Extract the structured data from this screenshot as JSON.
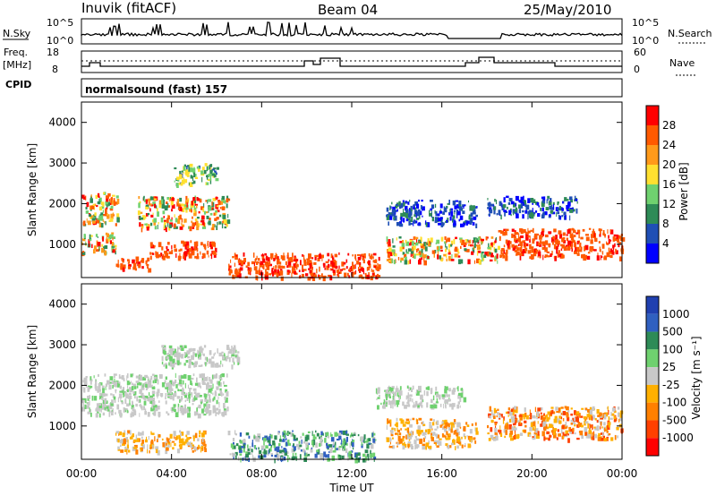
{
  "header": {
    "station": "Inuvik (fitACF)",
    "beam": "Beam 04",
    "date": "25/May/2010"
  },
  "sky_panel": {
    "left_label": "N.Sky",
    "right_label": "N.Search",
    "left_ticks": [
      "10^5",
      "10^0"
    ],
    "right_ticks": [
      "10^5",
      "10^0"
    ]
  },
  "freq_panel": {
    "left_label_1": "Freq.",
    "left_label_2": "[MHz]",
    "right_label": "Nave",
    "left_ticks": [
      "18",
      "8"
    ],
    "right_ticks": [
      "60",
      "0"
    ]
  },
  "cpid_panel": {
    "label": "CPID",
    "text": "normalsound (fast) 157"
  },
  "power_panel": {
    "ylabel": "Slant Range [km]",
    "colorbar_label": "Power [dB]",
    "colorbar_ticks": [
      "28",
      "24",
      "20",
      "16",
      "12",
      "8",
      "4"
    ],
    "colors": [
      "#0000ff",
      "#1f4fb5",
      "#2e8b57",
      "#6fd16f",
      "#ffe030",
      "#ff9a1a",
      "#ff5a00",
      "#ff0000"
    ]
  },
  "velocity_panel": {
    "ylabel": "Slant Range [km]",
    "colorbar_label": "Velocity [m s⁻¹]",
    "colorbar_ticks": [
      "1000",
      "500",
      "100",
      "25",
      "-25",
      "-100",
      "-500",
      "-1000"
    ],
    "colors": [
      "#2040b0",
      "#3060c0",
      "#2e8b57",
      "#6fd16f",
      "#c8c8c8",
      "#ffb000",
      "#ff8000",
      "#ff4000",
      "#ff0000"
    ]
  },
  "xaxis": {
    "label": "Time UT",
    "ticks": [
      "00:00",
      "04:00",
      "08:00",
      "12:00",
      "16:00",
      "20:00",
      "00:00"
    ]
  },
  "chart_data": {
    "type": "heatmap",
    "x_range_hours": [
      0,
      24
    ],
    "y_range_km": [
      180,
      4500
    ],
    "y_ticks_km": [
      1000,
      2000,
      3000,
      4000
    ],
    "power_regions": [
      {
        "t0": 0.0,
        "t1": 1.6,
        "r0": 1500,
        "r1": 2300,
        "level": "mixed-orange"
      },
      {
        "t0": 0.0,
        "t1": 1.5,
        "r0": 800,
        "r1": 1300,
        "level": "mixed-orange"
      },
      {
        "t0": 1.5,
        "t1": 3.0,
        "r0": 400,
        "r1": 700,
        "level": "red"
      },
      {
        "t0": 2.5,
        "t1": 6.5,
        "r0": 1400,
        "r1": 2200,
        "level": "mixed-orange"
      },
      {
        "t0": 3.0,
        "t1": 6.0,
        "r0": 700,
        "r1": 1100,
        "level": "red"
      },
      {
        "t0": 4.0,
        "t1": 6.0,
        "r0": 2500,
        "r1": 3000,
        "level": "green"
      },
      {
        "t0": 6.5,
        "t1": 13.2,
        "r0": 200,
        "r1": 800,
        "level": "red"
      },
      {
        "t0": 13.5,
        "t1": 17.5,
        "r0": 1500,
        "r1": 2100,
        "level": "blue"
      },
      {
        "t0": 13.5,
        "t1": 18.5,
        "r0": 600,
        "r1": 1200,
        "level": "mixed-orange"
      },
      {
        "t0": 18.5,
        "t1": 24.0,
        "r0": 700,
        "r1": 1400,
        "level": "red"
      },
      {
        "t0": 18.0,
        "t1": 22.0,
        "r0": 1700,
        "r1": 2200,
        "level": "blue"
      }
    ],
    "velocity_regions": [
      {
        "t0": 0.0,
        "t1": 6.5,
        "r0": 1300,
        "r1": 2300,
        "level": "grey"
      },
      {
        "t0": 1.5,
        "t1": 5.5,
        "r0": 400,
        "r1": 900,
        "level": "orange"
      },
      {
        "t0": 6.5,
        "t1": 13.0,
        "r0": 200,
        "r1": 900,
        "level": "green"
      },
      {
        "t0": 13.5,
        "t1": 17.5,
        "r0": 500,
        "r1": 1200,
        "level": "orange"
      },
      {
        "t0": 13.0,
        "t1": 17.0,
        "r0": 1500,
        "r1": 2000,
        "level": "grey"
      },
      {
        "t0": 18.0,
        "t1": 24.0,
        "r0": 700,
        "r1": 1500,
        "level": "orange-red"
      },
      {
        "t0": 3.5,
        "t1": 7.0,
        "r0": 2500,
        "r1": 3000,
        "level": "grey"
      }
    ]
  }
}
